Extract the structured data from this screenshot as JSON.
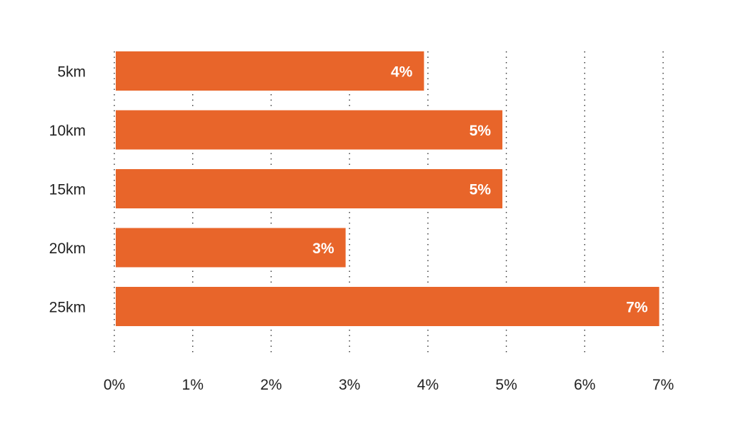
{
  "chart_data": {
    "type": "bar",
    "orientation": "horizontal",
    "categories": [
      "5km",
      "10km",
      "15km",
      "20km",
      "25km"
    ],
    "values": [
      3.95,
      4.95,
      4.95,
      2.95,
      6.95
    ],
    "data_labels": [
      "4%",
      "5%",
      "5%",
      "3%",
      "7%"
    ],
    "xlim": [
      0,
      7
    ],
    "x_ticks": [
      0,
      1,
      2,
      3,
      4,
      5,
      6,
      7
    ],
    "x_tick_labels": [
      "0%",
      "1%",
      "2%",
      "3%",
      "4%",
      "5%",
      "6%",
      "7%"
    ],
    "grid": "vertical-dotted",
    "bar_color": "#E8652A",
    "title": "",
    "xlabel": "",
    "ylabel": ""
  }
}
